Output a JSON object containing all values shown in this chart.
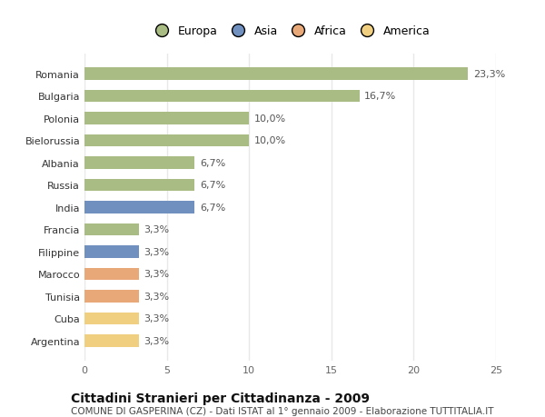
{
  "categories": [
    "Argentina",
    "Cuba",
    "Tunisia",
    "Marocco",
    "Filippine",
    "Francia",
    "India",
    "Russia",
    "Albania",
    "Bielorussia",
    "Polonia",
    "Bulgaria",
    "Romania"
  ],
  "values": [
    3.3,
    3.3,
    3.3,
    3.3,
    3.3,
    3.3,
    6.7,
    6.7,
    6.7,
    10.0,
    10.0,
    16.7,
    23.3
  ],
  "labels": [
    "3,3%",
    "3,3%",
    "3,3%",
    "3,3%",
    "3,3%",
    "3,3%",
    "6,7%",
    "6,7%",
    "6,7%",
    "10,0%",
    "10,0%",
    "16,7%",
    "23,3%"
  ],
  "colors": [
    "#f0d080",
    "#f0d080",
    "#e8a878",
    "#e8a878",
    "#7090c0",
    "#a8bc84",
    "#7090c0",
    "#a8bc84",
    "#a8bc84",
    "#a8bc84",
    "#a8bc84",
    "#a8bc84",
    "#a8bc84"
  ],
  "legend_labels": [
    "Europa",
    "Asia",
    "Africa",
    "America"
  ],
  "legend_colors": [
    "#a8bc84",
    "#7090c0",
    "#e8a878",
    "#f0d080"
  ],
  "title": "Cittadini Stranieri per Cittadinanza - 2009",
  "subtitle": "COMUNE DI GASPERINA (CZ) - Dati ISTAT al 1° gennaio 2009 - Elaborazione TUTTITALIA.IT",
  "xlim": [
    0,
    25
  ],
  "xticks": [
    0,
    5,
    10,
    15,
    20,
    25
  ],
  "background_color": "#ffffff",
  "bar_height": 0.55,
  "grid_color": "#e8e8e8",
  "title_fontsize": 10,
  "subtitle_fontsize": 7.5,
  "label_fontsize": 8,
  "tick_fontsize": 8,
  "legend_fontsize": 9
}
